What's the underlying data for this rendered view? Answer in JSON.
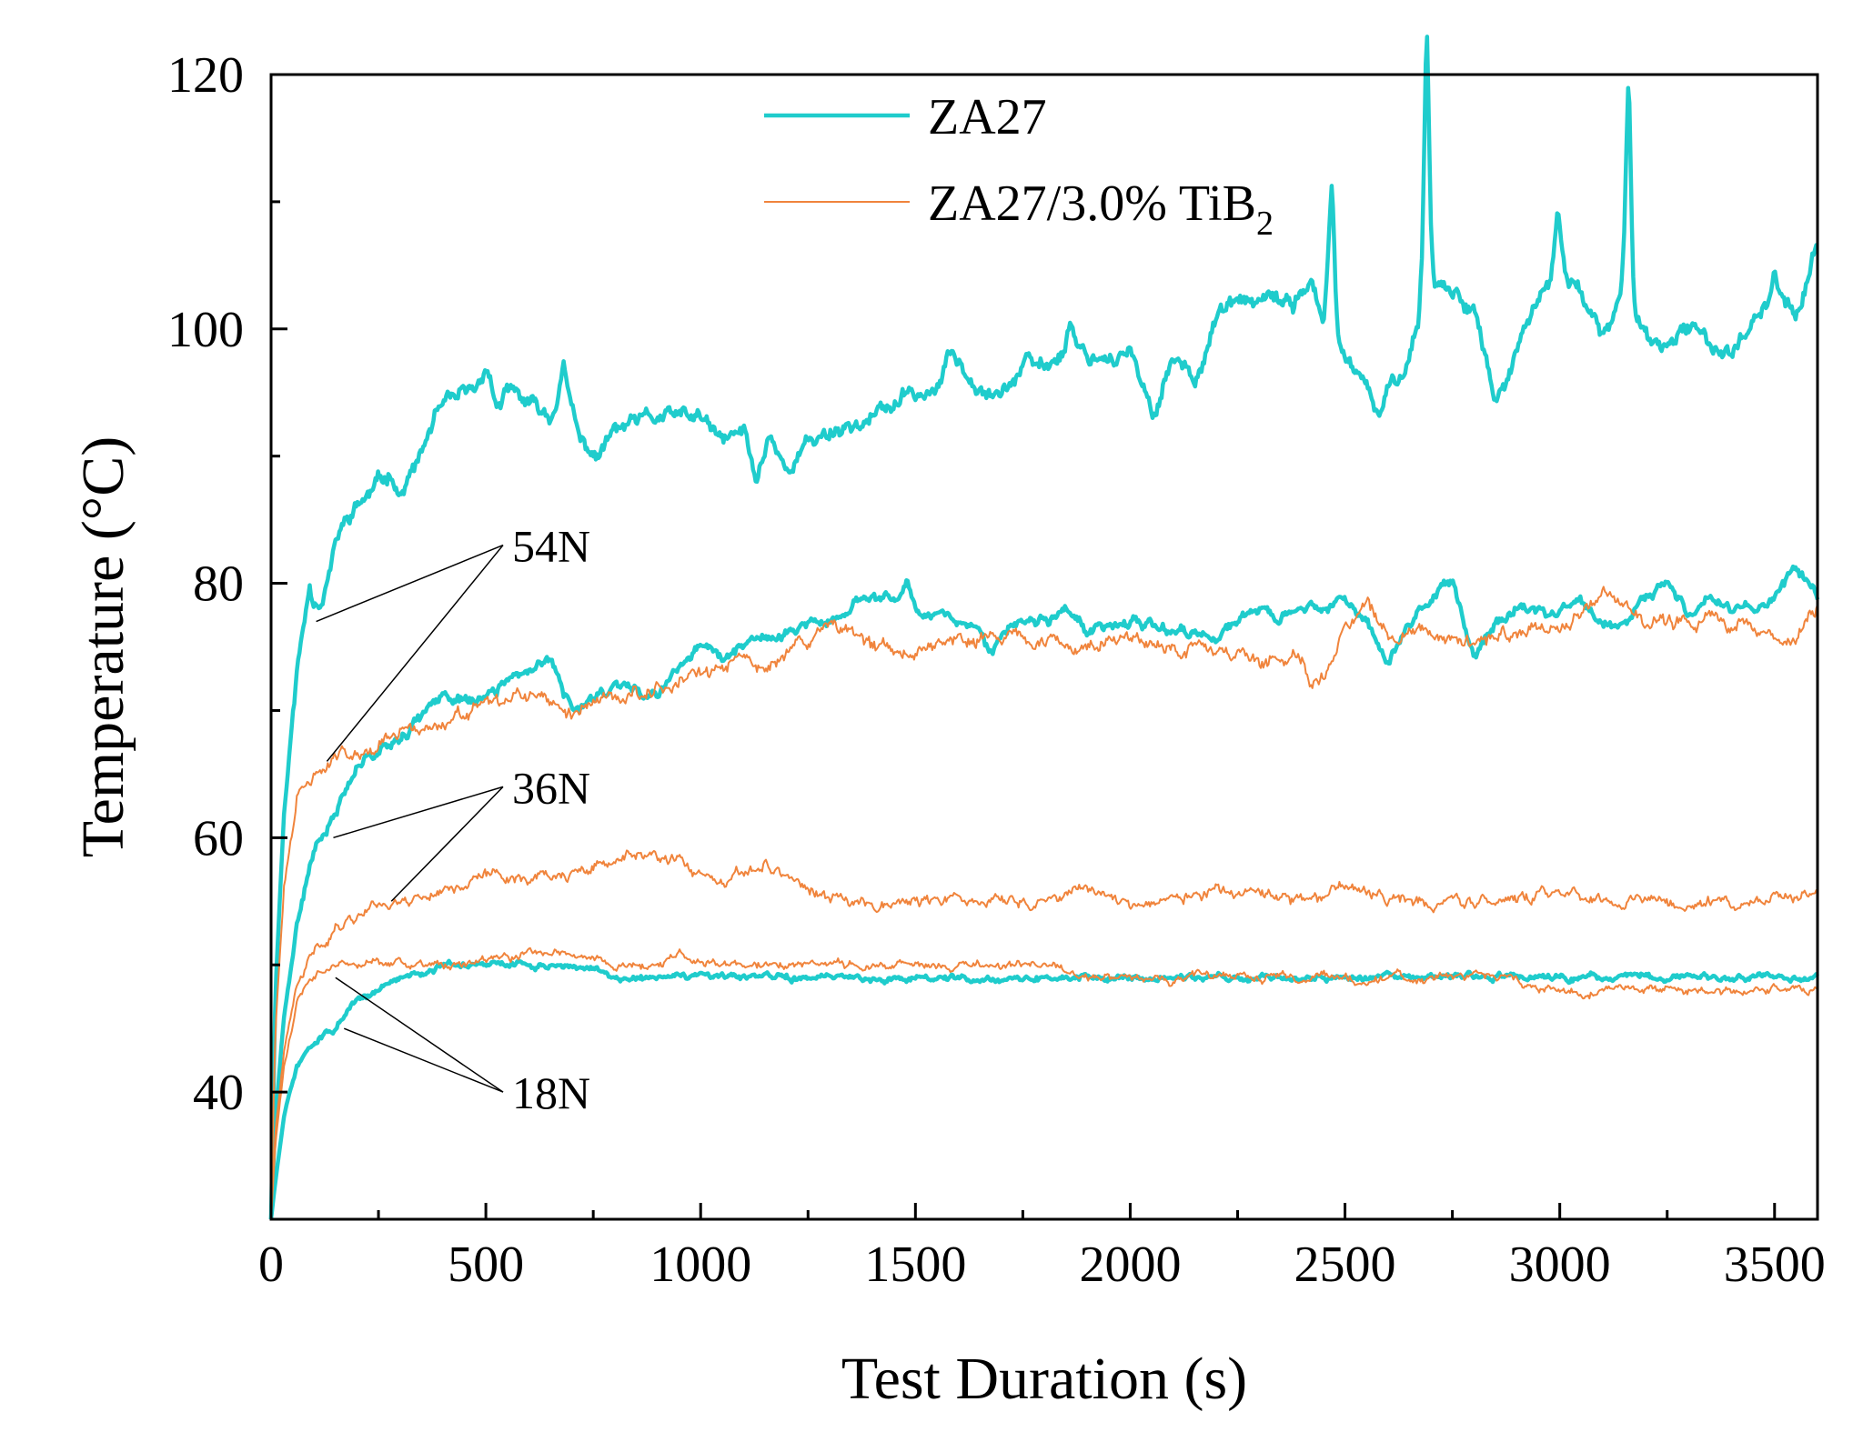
{
  "chart_data": {
    "type": "line",
    "title": "",
    "xlabel": "Test Duration (s)",
    "ylabel": "Temperature (°C)",
    "xlim": [
      0,
      3600
    ],
    "ylim": [
      30,
      120
    ],
    "x_ticks": [
      0,
      500,
      1000,
      1500,
      2000,
      2500,
      3000,
      3500
    ],
    "y_ticks": [
      40,
      60,
      80,
      100,
      120
    ],
    "x_minor_step": 250,
    "y_minor_step": 10,
    "grid": false,
    "legend_position": "top-center",
    "legend": [
      {
        "label": "ZA27",
        "color": "#1fcccc",
        "width": "thick"
      },
      {
        "label_main": "ZA27/3.0% TiB",
        "label_sub": "2",
        "color": "#f0843c",
        "width": "thin"
      }
    ],
    "series": [
      {
        "name": "ZA27 54N",
        "color": "#1fcccc",
        "style": "thick",
        "seed": 11,
        "noise": 0.75,
        "x": [
          0,
          10,
          30,
          60,
          90,
          100,
          120,
          160,
          200,
          260,
          280,
          300,
          350,
          380,
          420,
          470,
          500,
          530,
          560,
          600,
          650,
          680,
          720,
          760,
          800,
          900,
          1000,
          1050,
          1100,
          1130,
          1160,
          1200,
          1250,
          1300,
          1400,
          1500,
          1550,
          1580,
          1650,
          1700,
          1750,
          1800,
          1870,
          1900,
          2000,
          2050,
          2100,
          2150,
          2200,
          2250,
          2300,
          2380,
          2420,
          2450,
          2470,
          2480,
          2500,
          2550,
          2580,
          2600,
          2650,
          2680,
          2690,
          2700,
          2750,
          2800,
          2850,
          2900,
          2950,
          3000,
          3050,
          3100,
          3150,
          3160,
          3170,
          3200,
          3250,
          3300,
          3350,
          3400,
          3450,
          3500,
          3550,
          3600
        ],
        "y": [
          30,
          48,
          62,
          73,
          80,
          79,
          79,
          84,
          86,
          88,
          89,
          87,
          90,
          93,
          94,
          95,
          96,
          94,
          95,
          94,
          93,
          96,
          91,
          90,
          92,
          93,
          93,
          91,
          92,
          88,
          92,
          89,
          91,
          92,
          93,
          95,
          95,
          98,
          96,
          95,
          97,
          97,
          99,
          98,
          98,
          93,
          98,
          96,
          101,
          102,
          102,
          102,
          104,
          100,
          107,
          99,
          98,
          95,
          93,
          95,
          98,
          102,
          114,
          104,
          103,
          102,
          94,
          98,
          102,
          105,
          103,
          99,
          103,
          111,
          101,
          100,
          98,
          100,
          99,
          98,
          101,
          103,
          101,
          106
        ],
        "spikes": [
          [
            500,
            1.5
          ],
          [
            680,
            1.0
          ],
          [
            1860,
            2.0
          ],
          [
            2470,
            4.0
          ],
          [
            2690,
            10.5
          ],
          [
            2995,
            4.0
          ],
          [
            3160,
            9.0
          ],
          [
            3500,
            2.0
          ],
          [
            3600,
            1.0
          ]
        ]
      },
      {
        "name": "ZA27 36N",
        "color": "#1fcccc",
        "style": "thick",
        "seed": 21,
        "noise": 0.5,
        "x": [
          0,
          10,
          30,
          60,
          100,
          150,
          200,
          250,
          300,
          400,
          500,
          600,
          650,
          700,
          750,
          800,
          850,
          900,
          950,
          1000,
          1050,
          1100,
          1150,
          1200,
          1250,
          1300,
          1350,
          1400,
          1450,
          1480,
          1500,
          1550,
          1600,
          1650,
          1680,
          1700,
          1750,
          1800,
          1850,
          1900,
          1950,
          2000,
          2100,
          2200,
          2300,
          2350,
          2400,
          2450,
          2500,
          2550,
          2600,
          2650,
          2700,
          2750,
          2800,
          2850,
          2900,
          3000,
          3050,
          3100,
          3150,
          3200,
          3250,
          3300,
          3350,
          3400,
          3450,
          3500,
          3550,
          3580,
          3600
        ],
        "y": [
          30,
          38,
          46,
          53,
          59,
          62,
          66,
          67,
          68,
          71,
          71,
          73,
          74,
          70,
          71,
          72,
          72,
          71,
          74,
          75,
          74,
          75,
          76,
          76,
          77,
          77,
          78,
          79,
          79,
          80,
          78,
          78,
          77,
          76,
          74,
          76,
          77,
          77,
          78,
          76,
          77,
          77,
          76,
          76,
          78,
          77,
          78,
          78,
          79,
          77,
          74,
          77,
          79,
          80,
          74,
          77,
          78,
          78,
          78,
          77,
          77,
          79,
          80,
          78,
          79,
          78,
          78,
          79,
          81,
          80,
          79
        ]
      },
      {
        "name": "ZA27/3.0% TiB2 54N",
        "color": "#f0843c",
        "style": "thin",
        "seed": 31,
        "noise": 0.7,
        "x": [
          0,
          10,
          30,
          60,
          100,
          140,
          200,
          300,
          400,
          500,
          600,
          700,
          800,
          900,
          1000,
          1050,
          1100,
          1150,
          1200,
          1250,
          1300,
          1350,
          1400,
          1500,
          1600,
          1700,
          1800,
          1900,
          2000,
          2100,
          2200,
          2300,
          2400,
          2420,
          2450,
          2500,
          2550,
          2600,
          2650,
          2700,
          2800,
          2900,
          3000,
          3050,
          3100,
          3150,
          3200,
          3300,
          3400,
          3500,
          3550,
          3600
        ],
        "y": [
          31,
          45,
          56,
          63,
          65,
          66,
          67,
          68,
          69,
          70,
          71,
          70,
          71,
          72,
          73,
          73,
          74,
          73,
          75,
          75,
          77,
          76,
          75,
          75,
          76,
          76,
          75,
          75,
          76,
          75,
          75,
          74,
          74,
          72,
          73,
          76,
          79,
          76,
          77,
          76,
          75,
          76,
          77,
          77,
          79,
          79,
          77,
          77,
          77,
          76,
          76,
          78
        ]
      },
      {
        "name": "ZA27/3.0% TiB2 36N",
        "color": "#f0843c",
        "style": "thin",
        "seed": 41,
        "noise": 0.55,
        "x": [
          0,
          10,
          30,
          60,
          100,
          150,
          200,
          250,
          300,
          400,
          500,
          600,
          700,
          800,
          850,
          900,
          950,
          1000,
          1050,
          1100,
          1150,
          1200,
          1250,
          1300,
          1400,
          1500,
          1600,
          1700,
          1800,
          1900,
          2000,
          2100,
          2200,
          2300,
          2400,
          2500,
          2600,
          2700,
          2800,
          2900,
          3000,
          3100,
          3200,
          3300,
          3400,
          3500,
          3600
        ],
        "y": [
          30,
          37,
          43,
          48,
          51,
          53,
          54,
          55,
          55,
          56,
          57,
          57,
          57,
          58,
          59,
          58,
          58,
          57,
          56,
          57,
          58,
          57,
          56,
          55,
          55,
          55,
          55,
          55,
          55,
          56,
          55,
          55,
          56,
          55,
          55,
          56,
          55,
          55,
          55,
          55,
          56,
          55,
          55,
          55,
          55,
          55,
          55
        ]
      },
      {
        "name": "ZA27 18N",
        "color": "#1fcccc",
        "style": "thick",
        "seed": 51,
        "noise": 0.3,
        "x": [
          0,
          10,
          30,
          60,
          100,
          150,
          200,
          250,
          300,
          400,
          500,
          600,
          700,
          800,
          900,
          1000,
          1100,
          1200,
          1300,
          1400,
          1500,
          1600,
          1700,
          1800,
          1900,
          2000,
          2100,
          2200,
          2300,
          2400,
          2500,
          2600,
          2700,
          2800,
          2900,
          3000,
          3100,
          3200,
          3300,
          3400,
          3500,
          3600
        ],
        "y": [
          30,
          33,
          38,
          42,
          44,
          45,
          47,
          48,
          49,
          50,
          50,
          50,
          50,
          49,
          49,
          49,
          49,
          49,
          49,
          49,
          49,
          49,
          49,
          49,
          49,
          49,
          49,
          49,
          49,
          49,
          49,
          49,
          49,
          49,
          49,
          49,
          49,
          49,
          49,
          49,
          49,
          49
        ]
      },
      {
        "name": "ZA27/3.0% TiB2 18N",
        "color": "#f0843c",
        "style": "thin",
        "seed": 61,
        "noise": 0.4,
        "x": [
          0,
          10,
          30,
          60,
          100,
          150,
          200,
          250,
          300,
          400,
          500,
          600,
          700,
          800,
          900,
          950,
          1000,
          1100,
          1200,
          1300,
          1400,
          1500,
          1600,
          1700,
          1800,
          1900,
          2000,
          2100,
          2200,
          2300,
          2400,
          2500,
          2600,
          2700,
          2800,
          2900,
          3000,
          3100,
          3200,
          3300,
          3400,
          3500,
          3600
        ],
        "y": [
          30,
          36,
          42,
          47,
          49,
          50,
          50,
          50,
          50,
          50,
          50,
          51,
          51,
          50,
          50,
          51,
          50,
          50,
          50,
          50,
          50,
          50,
          50,
          50,
          50,
          49,
          49,
          49,
          49,
          49,
          49,
          49,
          49,
          49,
          49,
          49,
          48,
          48,
          48,
          48,
          48,
          48,
          48
        ]
      }
    ],
    "annotations": [
      {
        "text": "54N",
        "label_at": [
          540,
          83
        ],
        "targets": [
          [
            105,
            77
          ],
          [
            130,
            66
          ]
        ]
      },
      {
        "text": "36N",
        "label_at": [
          540,
          64
        ],
        "targets": [
          [
            145,
            60
          ],
          [
            280,
            55
          ]
        ]
      },
      {
        "text": "18N",
        "label_at": [
          540,
          40
        ],
        "targets": [
          [
            150,
            49
          ],
          [
            170,
            45
          ]
        ]
      }
    ]
  }
}
